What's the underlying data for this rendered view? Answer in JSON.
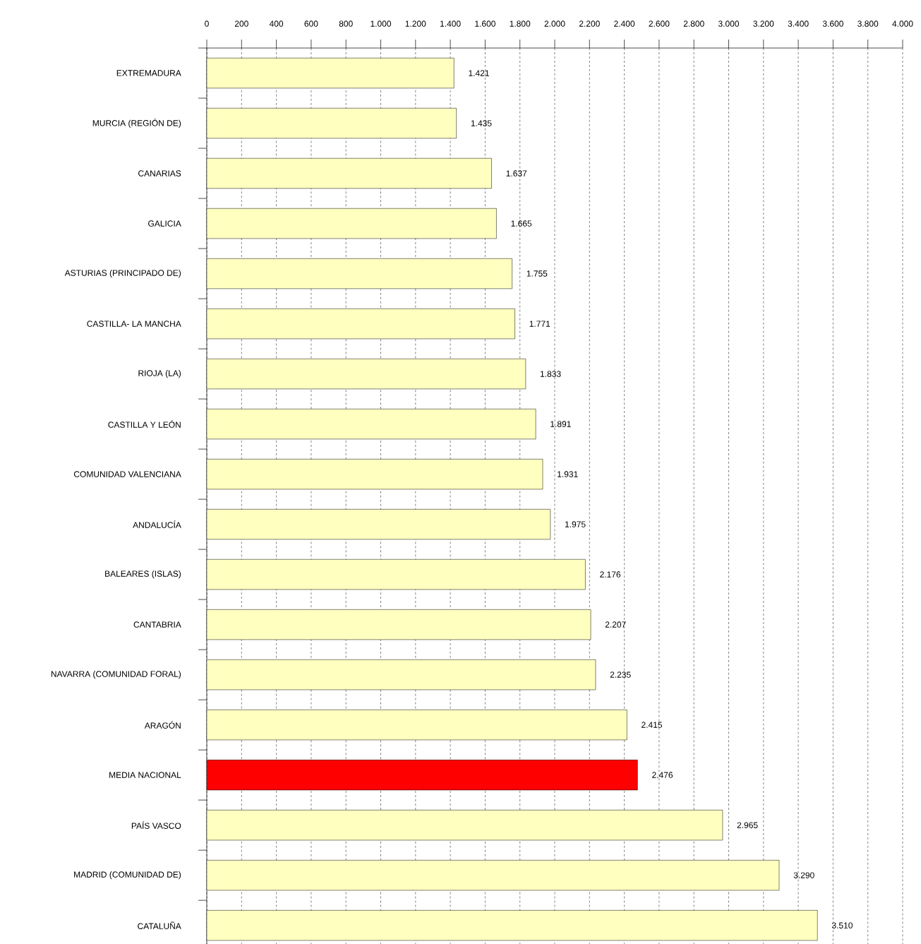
{
  "chart_data": {
    "type": "bar",
    "orientation": "horizontal",
    "categories": [
      "EXTREMADURA",
      "MURCIA (REGIÓN DE)",
      "CANARIAS",
      "GALICIA",
      "ASTURIAS (PRINCIPADO DE)",
      "CASTILLA- LA MANCHA",
      "RIOJA (LA)",
      "CASTILLA Y LEÓN",
      "COMUNIDAD VALENCIANA",
      "ANDALUCÍA",
      "BALEARES (ISLAS)",
      "CANTABRIA",
      "NAVARRA (COMUNIDAD FORAL)",
      "ARAGÓN",
      "MEDIA NACIONAL",
      "PAÍS VASCO",
      "MADRID (COMUNIDAD DE)",
      "CATALUÑA"
    ],
    "values": [
      1421,
      1435,
      1637,
      1665,
      1755,
      1771,
      1833,
      1891,
      1931,
      1975,
      2176,
      2207,
      2235,
      2415,
      2476,
      2965,
      3290,
      3510
    ],
    "value_labels": [
      "1.421",
      "1.435",
      "1.637",
      "1.665",
      "1.755",
      "1.771",
      "1.833",
      "1.891",
      "1.931",
      "1.975",
      "2.176",
      "2.207",
      "2.235",
      "2.415",
      "2.476",
      "2.965",
      "3.290",
      "3.510"
    ],
    "colors": [
      "#ffffc0",
      "#ffffc0",
      "#ffffc0",
      "#ffffc0",
      "#ffffc0",
      "#ffffc0",
      "#ffffc0",
      "#ffffc0",
      "#ffffc0",
      "#ffffc0",
      "#ffffc0",
      "#ffffc0",
      "#ffffc0",
      "#ffffc0",
      "#ff0000",
      "#ffffc0",
      "#ffffc0",
      "#ffffc0"
    ],
    "xlim": [
      0,
      4000
    ],
    "xticks": [
      0,
      200,
      400,
      600,
      800,
      {
        "value": 1000,
        "label": "1.000"
      },
      {
        "value": 1200,
        "label": "1.200"
      },
      {
        "value": 1400,
        "label": "1.400"
      },
      {
        "value": 1600,
        "label": "1.600"
      },
      {
        "value": 1800,
        "label": "1.800"
      },
      {
        "value": 2000,
        "label": "2.000"
      },
      {
        "value": 2200,
        "label": "2.200"
      },
      {
        "value": 2400,
        "label": "2.400"
      },
      {
        "value": 2600,
        "label": "2.600"
      },
      {
        "value": 2800,
        "label": "2.800"
      },
      {
        "value": 3000,
        "label": "3.000"
      },
      {
        "value": 3200,
        "label": "3.200"
      },
      {
        "value": 3400,
        "label": "3.400"
      },
      {
        "value": 3600,
        "label": "3.600"
      },
      {
        "value": 3800,
        "label": "3.800"
      },
      {
        "value": 4000,
        "label": "4.000"
      }
    ],
    "grid": "x"
  }
}
